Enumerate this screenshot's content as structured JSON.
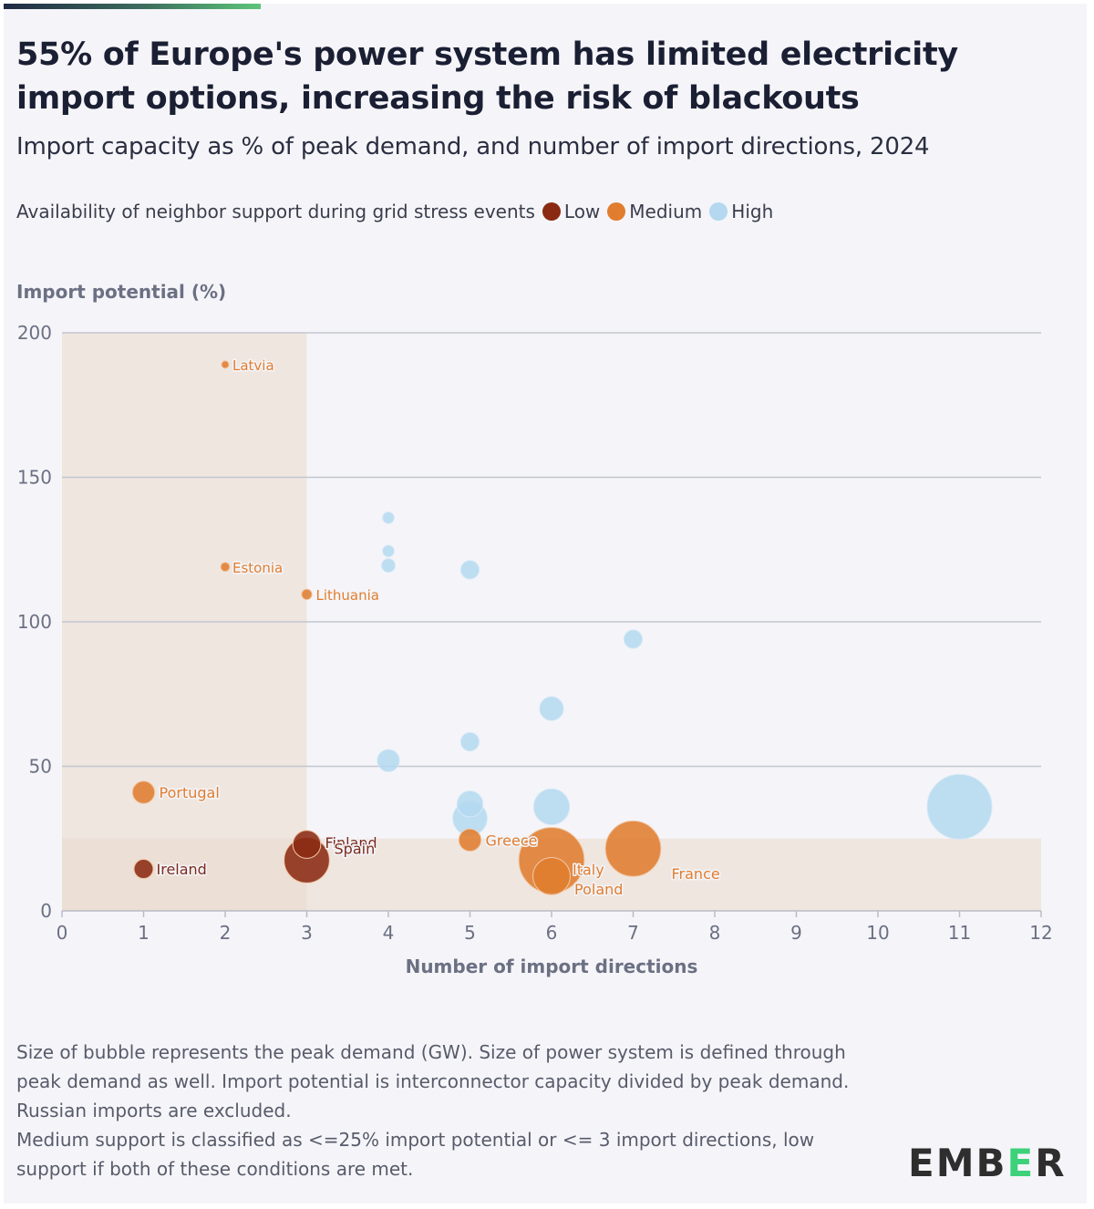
{
  "header": {
    "title": "55% of Europe's power system has limited electricity import options, increasing the risk of blackouts",
    "subtitle": "Import capacity as % of peak demand, and number of import directions, 2024"
  },
  "legend": {
    "label": "Availability of neighbor support during grid stress events",
    "items": [
      {
        "key": "low",
        "label": "Low",
        "color": "#8b2a12"
      },
      {
        "key": "medium",
        "label": "Medium",
        "color": "#e07d2f"
      },
      {
        "key": "high",
        "label": "High",
        "color": "#b3d8f0"
      }
    ]
  },
  "chart_data": {
    "type": "scatter",
    "subtype": "bubble",
    "title": "55% of Europe's power system has limited electricity import options, increasing the risk of blackouts",
    "subtitle": "Import capacity as % of peak demand, and number of import directions, 2024",
    "xlabel": "Number of import directions",
    "ylabel": "Import potential (%)",
    "xlim": [
      0,
      12
    ],
    "ylim": [
      0,
      200
    ],
    "xticks": [
      0,
      1,
      2,
      3,
      4,
      5,
      6,
      7,
      8,
      9,
      10,
      11,
      12
    ],
    "yticks": [
      0,
      50,
      100,
      150,
      200
    ],
    "grid": "horizontal",
    "legend_position": "top-left",
    "size_encoding": "Peak demand (GW)",
    "shaded_regions": [
      {
        "x_range": [
          0,
          3
        ],
        "y_range": [
          0,
          200
        ],
        "meaning": "<= 3 import directions"
      },
      {
        "x_range": [
          0,
          12
        ],
        "y_range": [
          0,
          25
        ],
        "meaning": "<= 25% import potential"
      }
    ],
    "colors": {
      "low": "#8b2a12",
      "medium": "#e07d2f",
      "high": "#b3d8f0"
    },
    "series": [
      {
        "name": "Low",
        "points": [
          {
            "label": "Ireland",
            "x": 1,
            "y": 14.5,
            "size": 7
          },
          {
            "label": "Finland",
            "x": 3,
            "y": 23,
            "size": 15
          },
          {
            "label": "Spain",
            "x": 3,
            "y": 17.5,
            "size": 40
          }
        ]
      },
      {
        "name": "Medium",
        "points": [
          {
            "label": "Latvia",
            "x": 2,
            "y": 189,
            "size": 1
          },
          {
            "label": "Estonia",
            "x": 2,
            "y": 119,
            "size": 1.5
          },
          {
            "label": "Lithuania",
            "x": 3,
            "y": 109.5,
            "size": 2
          },
          {
            "label": "Portugal",
            "x": 1,
            "y": 41,
            "size": 9.5
          },
          {
            "label": "Greece",
            "x": 5,
            "y": 24.5,
            "size": 9.5
          },
          {
            "label": "Italy",
            "x": 6,
            "y": 17.5,
            "size": 84
          },
          {
            "label": "Poland",
            "x": 6,
            "y": 12,
            "size": 27
          },
          {
            "label": "France",
            "x": 7,
            "y": 21.5,
            "size": 60
          }
        ]
      },
      {
        "name": "High",
        "points": [
          {
            "label": "",
            "x": 4,
            "y": 136,
            "size": 2.5
          },
          {
            "label": "",
            "x": 4,
            "y": 124.5,
            "size": 2.5
          },
          {
            "label": "",
            "x": 4,
            "y": 119.5,
            "size": 3.5
          },
          {
            "label": "",
            "x": 5,
            "y": 118,
            "size": 6.5
          },
          {
            "label": "",
            "x": 7,
            "y": 94,
            "size": 6.5
          },
          {
            "label": "",
            "x": 6,
            "y": 70,
            "size": 11
          },
          {
            "label": "",
            "x": 5,
            "y": 58.5,
            "size": 6.5
          },
          {
            "label": "",
            "x": 4,
            "y": 52,
            "size": 9.5
          },
          {
            "label": "",
            "x": 5,
            "y": 37,
            "size": 13
          },
          {
            "label": "",
            "x": 5,
            "y": 32,
            "size": 23
          },
          {
            "label": "",
            "x": 6,
            "y": 36,
            "size": 25
          },
          {
            "label": "",
            "x": 11,
            "y": 36,
            "size": 82
          }
        ]
      }
    ]
  },
  "footnote": {
    "lines": [
      "Size of bubble represents the peak demand (GW). Size of power system is defined through peak demand as well. Import potential is interconnector capacity divided by peak demand. Russian imports are excluded.",
      "Medium support is classified as <=25% import potential or <= 3 import directions, low support if both of these conditions are met."
    ]
  },
  "brand": {
    "logo_prefix": "EMB",
    "logo_e": "E",
    "logo_suffix": "R",
    "accent": "#3dd17a"
  }
}
